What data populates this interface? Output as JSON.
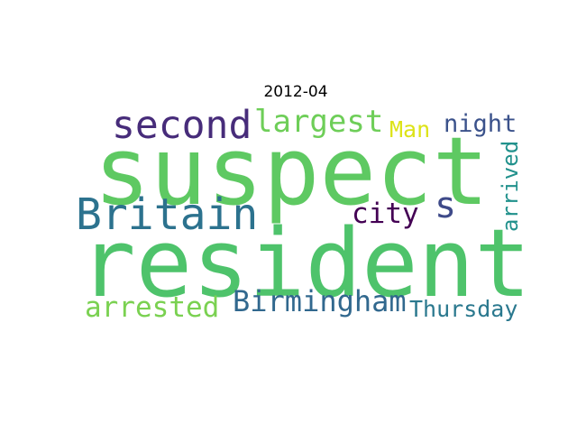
{
  "title": "2012-04",
  "words": {
    "suspect": {
      "text": "suspect",
      "color": "#5ec962"
    },
    "resident": {
      "text": "resident",
      "color": "#4ec36b"
    },
    "second": {
      "text": "second",
      "color": "#472c7a"
    },
    "largest": {
      "text": "largest",
      "color": "#6ece58"
    },
    "britain": {
      "text": "Britain",
      "color": "#2c728e"
    },
    "man": {
      "text": "Man",
      "color": "#dde318"
    },
    "night": {
      "text": "night",
      "color": "#3b528b"
    },
    "s": {
      "text": "s",
      "color": "#3e4a89"
    },
    "city": {
      "text": "city",
      "color": "#440154"
    },
    "arrived": {
      "text": "arrived",
      "color": "#21918c"
    },
    "arrested": {
      "text": "arrested",
      "color": "#7ad151"
    },
    "birmingham": {
      "text": "Birmingham",
      "color": "#31688e"
    },
    "thursday": {
      "text": "Thursday",
      "color": "#2a788e"
    }
  }
}
